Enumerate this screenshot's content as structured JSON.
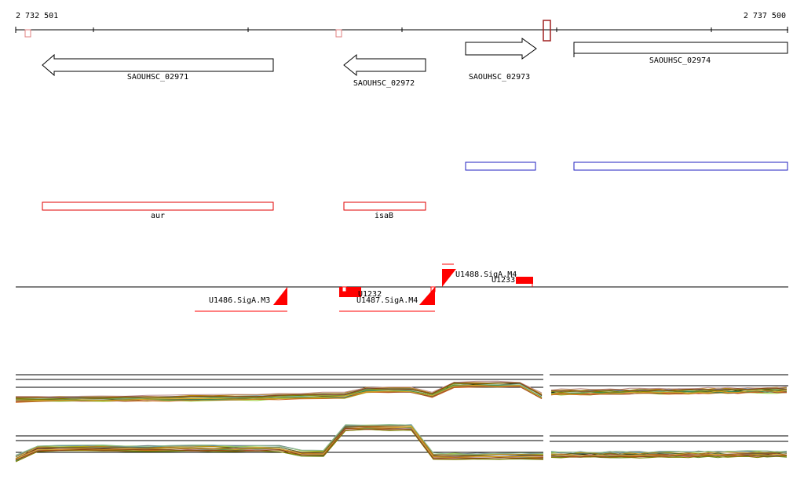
{
  "coordinates": {
    "start_label": "2 732 501",
    "end_label": "2 737 500"
  },
  "genes": [
    {
      "label": "SAOUHSC_02971",
      "strand": "-"
    },
    {
      "label": "SAOUHSC_02972",
      "strand": "-"
    },
    {
      "label": "SAOUHSC_02973",
      "strand": "+"
    },
    {
      "label": "SAOUHSC_02974",
      "strand": "+"
    }
  ],
  "gene_names": [
    {
      "label": "aur"
    },
    {
      "label": "isaB"
    }
  ],
  "regulatory": [
    {
      "label": "U1488.SigA.M4",
      "strand": "+"
    },
    {
      "label": "U1486.SigA.M3",
      "strand": "-"
    },
    {
      "label": "U1487.SigA.M4",
      "strand": "-"
    },
    {
      "label": "U1233",
      "strand": "+"
    },
    {
      "label": "U1232",
      "strand": "-"
    }
  ],
  "colors": {
    "gene_outline": "#000000",
    "name_box": "#e00000",
    "operon_box": "#2020c0",
    "promoter": "#ff0000",
    "highlight": "#a02020"
  }
}
